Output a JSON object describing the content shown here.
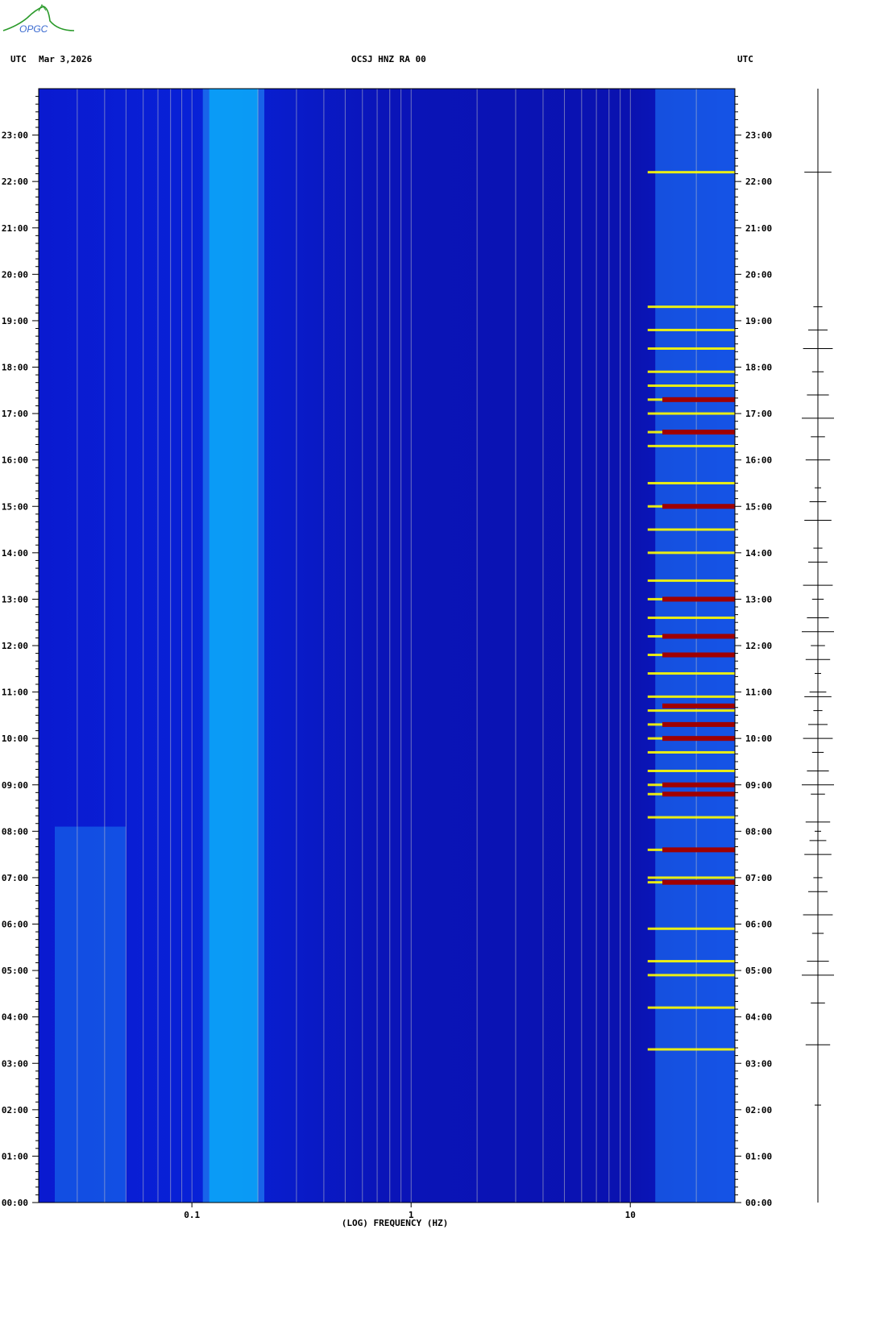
{
  "logo": {
    "text": "OPGC",
    "icon": "opgc-volcano-logo"
  },
  "header": {
    "left_utc": "UTC",
    "date": "Mar 3,2026",
    "station": "OCSJ HNZ RA 00",
    "right_utc": "UTC"
  },
  "colors": {
    "background_blue": "#0a14c8",
    "low_energy": "#0000a0",
    "mid_energy": "#00c8ff",
    "high_energy": "#ffff00",
    "peak_energy": "#a00000"
  },
  "chart_data": {
    "type": "heatmap",
    "title": "OCSJ HNZ RA 00",
    "xlabel": "(LOG) FREQUENCY (HZ)",
    "ylabel": "UTC",
    "x_scale": "log",
    "xlim": [
      0.02,
      30
    ],
    "x_ticks": [
      {
        "value": 0.1,
        "label": "0.1"
      },
      {
        "value": 1,
        "label": "1"
      },
      {
        "value": 10,
        "label": "10"
      }
    ],
    "ylim_hours": [
      0,
      24
    ],
    "y_ticks": [
      "00:00",
      "01:00",
      "02:00",
      "03:00",
      "04:00",
      "05:00",
      "06:00",
      "07:00",
      "08:00",
      "09:00",
      "10:00",
      "11:00",
      "12:00",
      "13:00",
      "14:00",
      "15:00",
      "16:00",
      "17:00",
      "18:00",
      "19:00",
      "20:00",
      "21:00",
      "22:00",
      "23:00"
    ],
    "microseism_band_hz": [
      0.12,
      0.2
    ],
    "noise_band_hz": [
      13,
      30
    ],
    "high_energy_hours": [
      3.3,
      4.2,
      4.9,
      5.2,
      5.9,
      6.9,
      7.0,
      7.6,
      8.3,
      8.8,
      9.0,
      9.3,
      9.7,
      10.0,
      10.3,
      10.6,
      10.9,
      11.4,
      11.8,
      12.2,
      12.6,
      13.0,
      13.4,
      14.0,
      14.5,
      15.0,
      15.5,
      16.3,
      16.6,
      17.0,
      17.3,
      17.6,
      17.9,
      18.4,
      18.8,
      19.3,
      22.2
    ],
    "peak_hours": [
      6.9,
      7.6,
      8.8,
      9.0,
      10.0,
      10.3,
      10.7,
      11.8,
      12.2,
      13.0,
      15.0,
      16.6,
      17.3
    ],
    "trace_events_hours": [
      2.1,
      3.4,
      4.3,
      4.9,
      5.2,
      5.8,
      6.2,
      6.7,
      7.0,
      7.5,
      7.8,
      8.0,
      8.2,
      8.8,
      9.0,
      9.3,
      9.7,
      10.0,
      10.3,
      10.6,
      10.9,
      11.0,
      11.4,
      11.7,
      12.0,
      12.3,
      12.6,
      13.0,
      13.3,
      13.8,
      14.1,
      14.7,
      15.1,
      15.4,
      16.0,
      16.5,
      16.9,
      17.4,
      17.9,
      18.4,
      18.8,
      19.3,
      22.2
    ]
  }
}
